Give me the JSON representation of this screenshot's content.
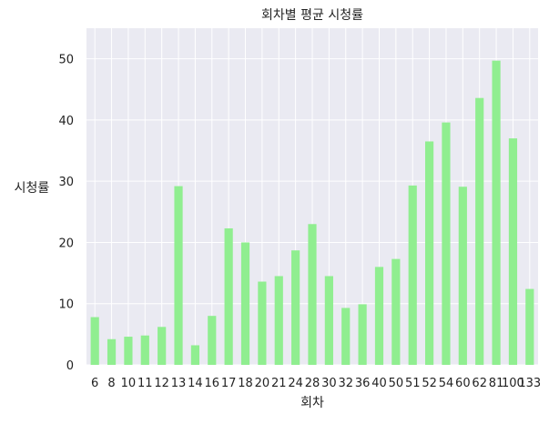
{
  "chart_data": {
    "type": "bar",
    "title": "회차별 평균 시청률",
    "xlabel": "회차",
    "ylabel": "시청률",
    "categories": [
      "6",
      "8",
      "10",
      "11",
      "12",
      "13",
      "14",
      "16",
      "17",
      "18",
      "20",
      "21",
      "24",
      "28",
      "30",
      "32",
      "36",
      "40",
      "50",
      "51",
      "52",
      "54",
      "60",
      "62",
      "81",
      "100",
      "133"
    ],
    "values": [
      7.8,
      4.2,
      4.6,
      4.8,
      6.2,
      29.2,
      3.2,
      8.0,
      22.3,
      20.0,
      13.6,
      14.5,
      18.7,
      23.0,
      14.5,
      9.3,
      9.9,
      16.0,
      17.3,
      29.3,
      36.5,
      39.6,
      29.1,
      43.6,
      49.7,
      37.0,
      12.4
    ],
    "ylim": [
      0,
      55
    ],
    "yticks": [
      0,
      10,
      20,
      30,
      40,
      50
    ],
    "bar_color": "#90EE90",
    "background": "#EAEAF2",
    "grid": true,
    "legend": "none"
  }
}
